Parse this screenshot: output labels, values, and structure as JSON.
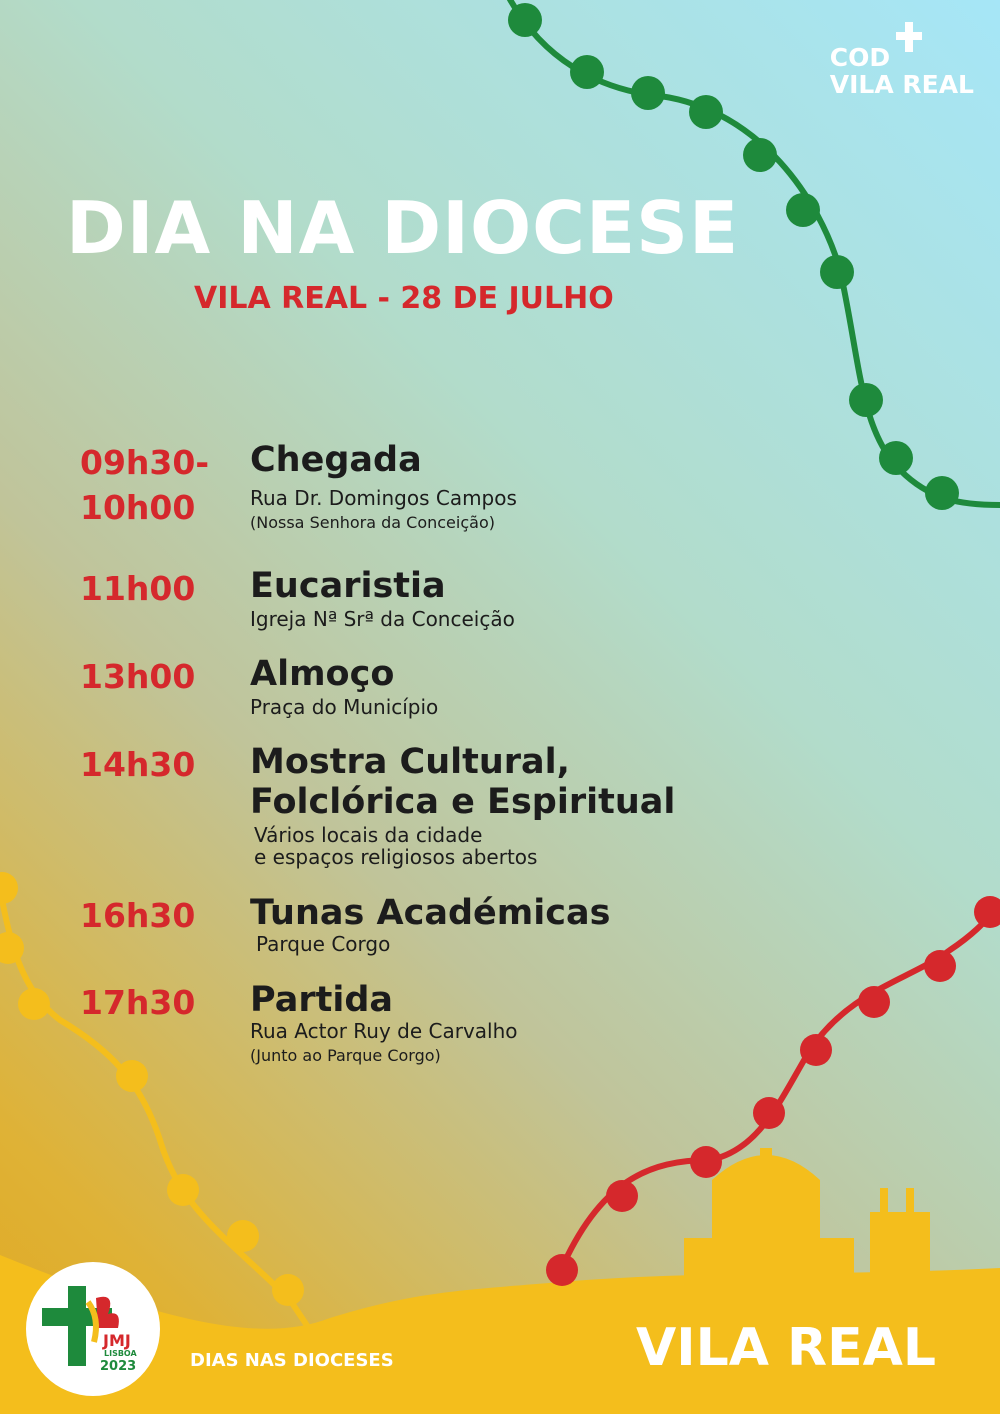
{
  "colors": {
    "accent_red": "#d5282c",
    "green": "#1e8a3c",
    "yellow": "#f4be1c",
    "text": "#1c1c1c"
  },
  "header": {
    "cod_line1": "COD",
    "cod_line2": "VILA REAL"
  },
  "title": "DIA NA DIOCESE",
  "subtitle": "VILA REAL - 28 DE JULHO",
  "schedule": [
    {
      "time": "09h30-\n10h00",
      "event": "Chegada",
      "location": "Rua Dr. Domingos Campos",
      "detail": "(Nossa Senhora da Conceição)"
    },
    {
      "time": "11h00",
      "event": "Eucaristia",
      "location": "Igreja Nª Srª da Conceição",
      "detail": ""
    },
    {
      "time": "13h00",
      "event": "Almoço",
      "location": "Praça do Município",
      "detail": ""
    },
    {
      "time": "14h30",
      "event": "Mostra Cultural,\nFolclórica e Espiritual",
      "location": "Vários locais da cidade\ne espaços religiosos abertos",
      "detail": ""
    },
    {
      "time": "16h30",
      "event": "Tunas Académicas",
      "location": "Parque Corgo",
      "detail": ""
    },
    {
      "time": "17h30",
      "event": "Partida",
      "location": "Rua Actor Ruy de Carvalho",
      "detail": "(Junto ao Parque Corgo)"
    }
  ],
  "logo": {
    "line1": "JMJ",
    "line2": "LISBOA",
    "line3": "2023"
  },
  "footer": {
    "left": "DIAS NAS DIOCESES",
    "right": "VILA REAL"
  },
  "icons": [
    "jmj-cross-icon",
    "church-silhouette"
  ]
}
